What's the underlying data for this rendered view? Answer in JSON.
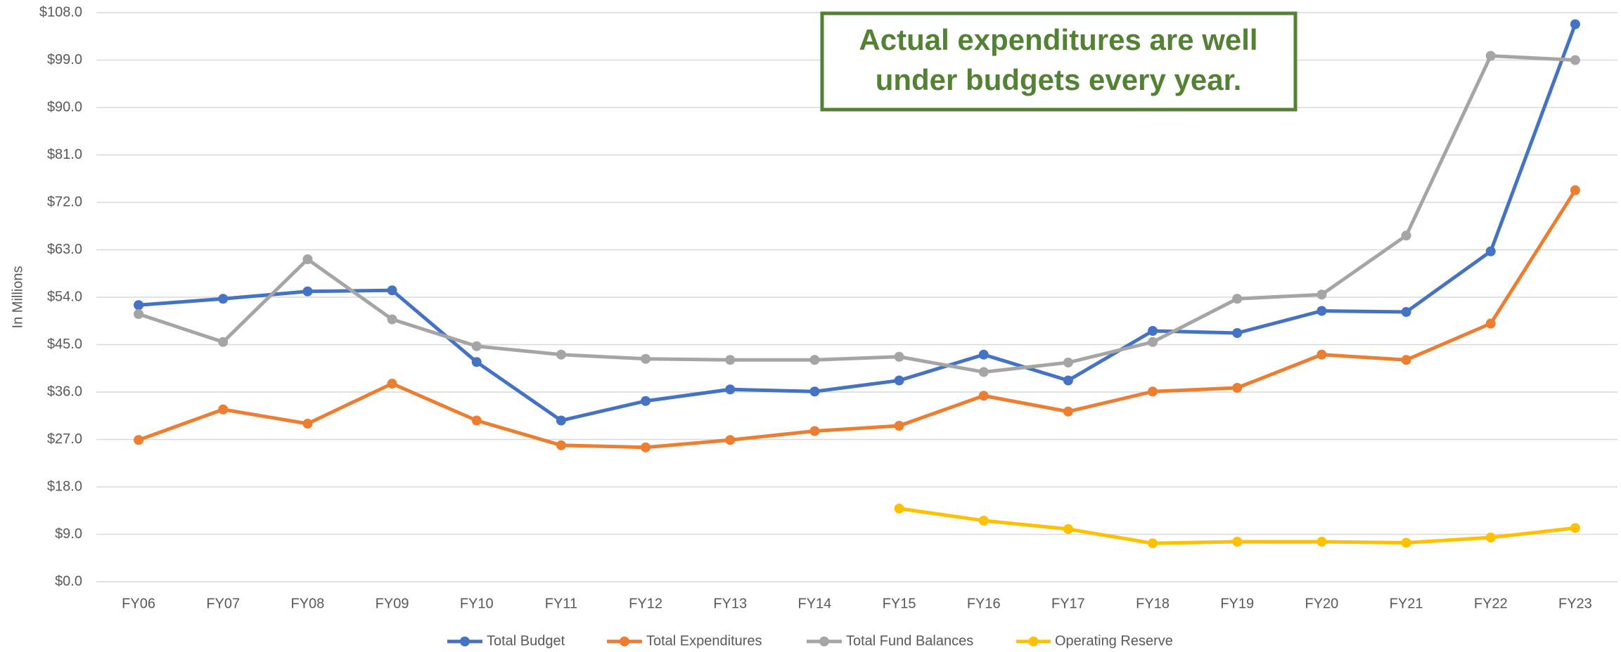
{
  "chart_data": {
    "type": "line",
    "annotation": [
      "Actual expenditures are well",
      "under budgets every year."
    ],
    "y_axis_label": "In Millions",
    "categories": [
      "FY06",
      "FY07",
      "FY08",
      "FY09",
      "FY10",
      "FY11",
      "FY12",
      "FY13",
      "FY14",
      "FY15",
      "FY16",
      "FY17",
      "FY18",
      "FY19",
      "FY20",
      "FY21",
      "FY22",
      "FY23"
    ],
    "series": [
      {
        "name": "Total Budget",
        "color": "#4472c4",
        "values": [
          52.5,
          53.7,
          55.1,
          55.3,
          41.7,
          30.6,
          34.3,
          36.5,
          36.1,
          38.2,
          43.1,
          38.2,
          47.6,
          47.2,
          51.4,
          51.2,
          62.7,
          105.8
        ]
      },
      {
        "name": "Total Expenditures",
        "color": "#ed7d31",
        "values": [
          26.9,
          32.7,
          30.0,
          37.6,
          30.6,
          25.9,
          25.5,
          26.9,
          28.6,
          29.6,
          35.3,
          32.3,
          36.1,
          36.8,
          43.1,
          42.1,
          49.0,
          74.3
        ]
      },
      {
        "name": "Total Fund Balances",
        "color": "#a5a5a5",
        "values": [
          50.8,
          45.5,
          61.2,
          49.8,
          44.7,
          43.1,
          42.3,
          42.1,
          42.1,
          42.7,
          39.8,
          41.6,
          45.5,
          53.7,
          54.5,
          65.7,
          99.8,
          99.0
        ]
      },
      {
        "name": "Operating Reserve",
        "color": "#ffc000",
        "values": [
          null,
          null,
          null,
          null,
          null,
          null,
          null,
          null,
          null,
          13.9,
          11.6,
          10.0,
          7.3,
          7.6,
          7.6,
          7.4,
          8.4,
          10.2
        ]
      }
    ],
    "ylim": [
      0,
      108
    ],
    "yticks": [
      {
        "value": 0,
        "label": "$0.0"
      },
      {
        "value": 9,
        "label": "$9.0"
      },
      {
        "value": 18,
        "label": "$18.0"
      },
      {
        "value": 27,
        "label": "$27.0"
      },
      {
        "value": 36,
        "label": "$36.0"
      },
      {
        "value": 45,
        "label": "$45.0"
      },
      {
        "value": 54,
        "label": "$54.0"
      },
      {
        "value": 63,
        "label": "$63.0"
      },
      {
        "value": 72,
        "label": "$72.0"
      },
      {
        "value": 81,
        "label": "$81.0"
      },
      {
        "value": 90,
        "label": "$90.0"
      },
      {
        "value": 99,
        "label": "$99.0"
      },
      {
        "value": 108,
        "label": "$108.0"
      }
    ],
    "grid": true,
    "legend": "bottom"
  }
}
